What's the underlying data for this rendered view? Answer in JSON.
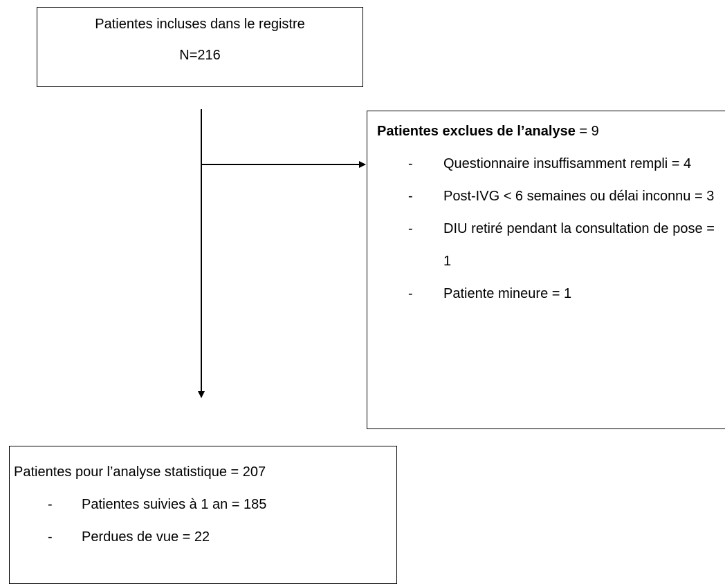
{
  "nodes": [
    {
      "lines": [
        "Patientes incluses dans le registre",
        "N=216"
      ]
    },
    {
      "title": "Patientes exclues de l’analyse",
      "title_suffix": "= 9",
      "bullet": "-",
      "items": [
        "Questionnaire insuffisamment rempli = 4",
        "Post-IVG < 6 semaines ou délai inconnu = 3",
        "DIU retiré pendant la consultation de pose = 1",
        "Patiente mineure = 1"
      ]
    },
    {
      "title": "Patientes pour l’analyse statistique = 207",
      "bullet": "-",
      "items": [
        "Patientes suivies à 1 an = 185",
        "Perdues de vue = 22"
      ]
    }
  ]
}
